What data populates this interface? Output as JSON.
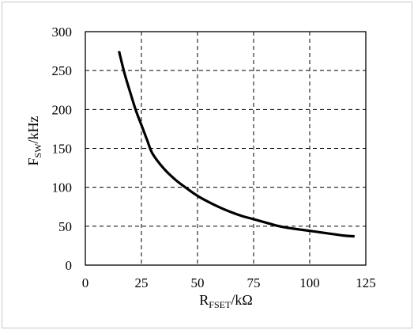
{
  "chart_data": {
    "type": "line",
    "title": "",
    "xlabel": {
      "main": "R",
      "sub": "FSET",
      "unit": "/kΩ"
    },
    "ylabel": {
      "main": "F",
      "sub": "SW",
      "unit": "/kHz"
    },
    "xlim": [
      0,
      125
    ],
    "ylim": [
      0,
      300
    ],
    "xticks": [
      0,
      25,
      50,
      75,
      100,
      125
    ],
    "yticks": [
      0,
      50,
      100,
      150,
      200,
      250,
      300
    ],
    "xtick_labels": [
      "0",
      "25",
      "50",
      "75",
      "100",
      "125"
    ],
    "ytick_labels": [
      "0",
      "50",
      "100",
      "150",
      "200",
      "250",
      "300"
    ],
    "grid": "dashed",
    "legend": "none",
    "line_color": "#000000",
    "series": [
      {
        "x": [
          15,
          17.5,
          20,
          22.5,
          25,
          27.5,
          30,
          35,
          40,
          45,
          50,
          55,
          60,
          65,
          70,
          75,
          80,
          85,
          90,
          95,
          100,
          105,
          110,
          115,
          120
        ],
        "y": [
          275,
          246,
          222,
          199,
          180,
          161,
          143,
          124,
          110,
          99,
          89,
          81,
          74,
          68,
          63,
          59,
          55,
          51,
          48,
          46,
          44,
          42,
          40,
          38,
          37
        ]
      }
    ]
  }
}
